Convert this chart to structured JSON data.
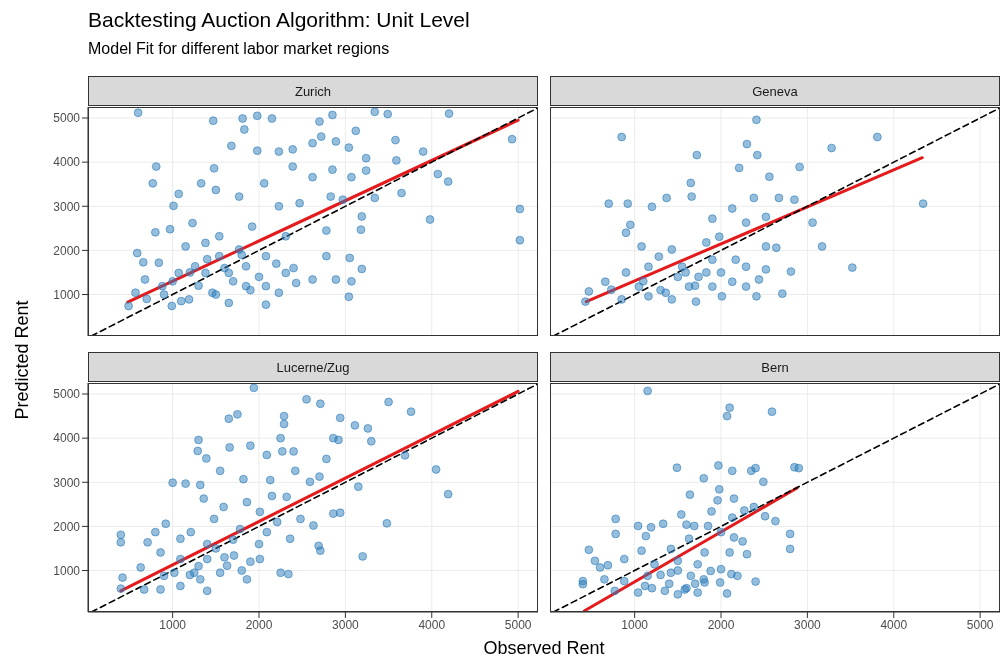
{
  "chart_data": [
    {
      "type": "scatter",
      "title": "Zurich",
      "annotations": [
        "Backtesting Auction Algorithm: Unit Level",
        "Model Fit for different labor market regions"
      ],
      "ylabel": "Predicted Rent",
      "xlim": [
        20,
        5230
      ],
      "ylim": [
        60,
        5250
      ],
      "xticks": [
        1000,
        2000,
        3000,
        4000,
        5000
      ],
      "yticks": [
        1000,
        2000,
        3000,
        4000,
        5000
      ],
      "grid": true,
      "tick_labels": "y",
      "series": [
        {
          "marker": "circle",
          "color": "#2b7bba",
          "x": [
            600,
            1470,
            1810,
            1980,
            2150,
            2850,
            3340,
            3490,
            4200,
            4930,
            5020,
            5020,
            3980,
            4190,
            3900,
            3580,
            3590,
            3120,
            2700,
            2720,
            2620,
            2890,
            3040,
            3240,
            3240,
            3650,
            4070,
            810,
            770,
            1680,
            1830,
            1980,
            2230,
            2390,
            2390,
            2850,
            3070,
            2620,
            2060,
            1330,
            1480,
            1070,
            1010,
            1500,
            1770,
            2230,
            2470,
            2830,
            2970,
            3190,
            3340,
            800,
            970,
            590,
            660,
            1230,
            1540,
            1920,
            2310,
            2780,
            3180,
            2780,
            3050,
            3190,
            3070,
            2890,
            2620,
            3040,
            2310,
            2080,
            1770,
            1380,
            1150,
            840,
            680,
            570,
            490,
            880,
            1070,
            1260,
            1540,
            1850,
            2080,
            2230,
            2080,
            1460,
            1190,
            990,
            1650,
            1850,
            2430,
            1650,
            1380,
            700,
            900,
            1100,
            1300,
            1500,
            1700,
            1900,
            1200,
            1600,
            2000,
            1000,
            1400,
            1800,
            2200,
            2400
          ],
          "values": [
            5120,
            4940,
            4990,
            5050,
            4990,
            5070,
            5140,
            5090,
            5100,
            4520,
            2940,
            2230,
            2700,
            3560,
            4240,
            4500,
            4040,
            4710,
            4920,
            4580,
            4430,
            4470,
            4330,
            4090,
            3810,
            3300,
            3730,
            3900,
            3520,
            4370,
            4740,
            4260,
            4240,
            4290,
            3900,
            3830,
            3660,
            3660,
            3520,
            3520,
            3860,
            3280,
            3010,
            3370,
            3220,
            3000,
            3070,
            3220,
            3150,
            2770,
            3190,
            2410,
            2480,
            1940,
            1730,
            2620,
            2320,
            2540,
            2320,
            2450,
            2470,
            1870,
            1830,
            1580,
            1300,
            1340,
            1340,
            950,
            1490,
            1870,
            2020,
            2170,
            2090,
            1720,
            1340,
            1040,
            740,
            1190,
            1490,
            1640,
            1870,
            1640,
            1190,
            1040,
            770,
            1040,
            890,
            740,
            810,
            1190,
            1260,
            1490,
            1490,
            900,
            1000,
            850,
            1200,
            1000,
            1300,
            1100,
            1500,
            1600,
            1400,
            1300,
            1800,
            1900,
            1700,
            1600
          ]
        },
        {
          "type": "line",
          "color": "#e41a1c",
          "x": [
            480,
            5000
          ],
          "values": [
            830,
            4950
          ]
        },
        {
          "type": "line",
          "color": "#000000",
          "line_style": "dashed",
          "x": [
            60,
            5230
          ],
          "values": [
            60,
            5230
          ]
        }
      ]
    },
    {
      "type": "scatter",
      "title": "Geneva",
      "xlim": [
        20,
        5230
      ],
      "ylim": [
        60,
        5250
      ],
      "xticks": [
        1000,
        2000,
        3000,
        4000,
        5000
      ],
      "yticks": [
        1000,
        2000,
        3000,
        4000,
        5000
      ],
      "grid": true,
      "tick_labels": false,
      "series": [
        {
          "marker": "circle",
          "color": "#2b7bba",
          "x": [
            2410,
            850,
            2300,
            2420,
            1720,
            3280,
            3810,
            4340,
            2210,
            2560,
            2910,
            1650,
            700,
            920,
            1370,
            1660,
            1200,
            900,
            950,
            2380,
            2670,
            2850,
            2130,
            1900,
            2290,
            2520,
            3060,
            3170,
            3520,
            2810,
            2710,
            2410,
            1710,
            660,
            900,
            1160,
            1430,
            1830,
            1980,
            1080,
            1280,
            1550,
            1740,
            1900,
            2170,
            2290,
            2520,
            2640,
            2130,
            2290,
            2440,
            2520,
            470,
            730,
            1050,
            1360,
            1630,
            1900,
            2010,
            1160,
            850,
            430,
            1430,
            1830,
            1590,
            1100,
            1300,
            1500,
            1700,
            2000
          ],
          "values": [
            4960,
            4570,
            4410,
            4160,
            4160,
            4320,
            4570,
            3060,
            3870,
            3670,
            3890,
            3530,
            3060,
            3060,
            3190,
            3220,
            2990,
            2400,
            2580,
            3190,
            3190,
            3150,
            2950,
            2720,
            2630,
            2760,
            2630,
            2090,
            1610,
            1520,
            1020,
            960,
            840,
            1290,
            1500,
            1630,
            2020,
            2180,
            2310,
            2090,
            1860,
            1630,
            1400,
            1790,
            1790,
            1630,
            2090,
            2060,
            1290,
            1180,
            1340,
            1570,
            1070,
            1110,
            1180,
            1040,
            1180,
            1180,
            960,
            960,
            890,
            840,
            890,
            1500,
            1500,
            1300,
            1100,
            1400,
            1200,
            1500
          ]
        },
        {
          "type": "line",
          "color": "#e41a1c",
          "x": [
            440,
            4330
          ],
          "values": [
            840,
            4100
          ]
        },
        {
          "type": "line",
          "color": "#000000",
          "line_style": "dashed",
          "x": [
            60,
            5230
          ],
          "values": [
            60,
            5230
          ]
        }
      ]
    },
    {
      "type": "scatter",
      "title": "Lucerne/Zug",
      "xlabel": "Observed Rent",
      "xlim": [
        20,
        5230
      ],
      "ylim": [
        60,
        5250
      ],
      "xticks": [
        1000,
        2000,
        3000,
        4000,
        5000
      ],
      "yticks": [
        1000,
        2000,
        3000,
        4000,
        5000
      ],
      "grid": true,
      "series": [
        {
          "marker": "circle",
          "color": "#2b7bba",
          "x": [
            1940,
            2550,
            2710,
            3500,
            3760,
            1650,
            1750,
            2290,
            2290,
            2940,
            3110,
            3260,
            1300,
            1290,
            1390,
            1660,
            1900,
            2250,
            2270,
            2400,
            2090,
            2860,
            2920,
            3300,
            2780,
            3690,
            4050,
            4190,
            3480,
            3200,
            1550,
            1000,
            1150,
            1320,
            1820,
            2130,
            2420,
            2590,
            2700,
            3150,
            2940,
            2860,
            2320,
            2150,
            1360,
            1590,
            1860,
            2010,
            2210,
            2480,
            2630,
            2690,
            2710,
            2360,
            2090,
            1780,
            1480,
            1210,
            1090,
            920,
            800,
            400,
            400,
            710,
            860,
            1090,
            1400,
            1710,
            2010,
            2250,
            2340,
            630,
            420,
            400,
            670,
            860,
            1090,
            1320,
            1550,
            1400,
            1860,
            1630,
            1250,
            1020,
            900,
            1500,
            1700,
            1300,
            1800,
            1600,
            1400,
            2000,
            1200,
            1900
          ],
          "values": [
            5140,
            4880,
            4780,
            4820,
            4600,
            4440,
            4540,
            4500,
            4320,
            4460,
            4290,
            4220,
            3960,
            3710,
            3540,
            3790,
            3830,
            4000,
            3700,
            3700,
            3620,
            4000,
            3960,
            3930,
            3530,
            3610,
            3290,
            2730,
            2070,
            1320,
            3260,
            2990,
            2970,
            2940,
            3070,
            3050,
            3260,
            3010,
            3130,
            2900,
            2310,
            2290,
            2670,
            2690,
            2630,
            2440,
            2550,
            2330,
            2100,
            2170,
            2020,
            1560,
            1450,
            1720,
            1870,
            1940,
            2170,
            1870,
            1720,
            2060,
            1870,
            1810,
            1640,
            1640,
            1410,
            1260,
            1260,
            1340,
            1260,
            950,
            920,
            1070,
            840,
            590,
            570,
            570,
            650,
            800,
            950,
            540,
            800,
            1110,
            950,
            950,
            880,
            1500,
            1700,
            1100,
            1000,
            1300,
            1600,
            1600,
            900,
            1200
          ]
        },
        {
          "type": "line",
          "color": "#e41a1c",
          "x": [
            400,
            5000
          ],
          "values": [
            540,
            5060
          ]
        },
        {
          "type": "line",
          "color": "#000000",
          "line_style": "dashed",
          "x": [
            60,
            5230
          ],
          "values": [
            60,
            5230
          ]
        }
      ]
    },
    {
      "type": "scatter",
      "title": "Bern",
      "xlim": [
        20,
        5230
      ],
      "ylim": [
        60,
        5250
      ],
      "xticks": [
        1000,
        2000,
        3000,
        4000,
        5000
      ],
      "yticks": [
        1000,
        2000,
        3000,
        4000,
        5000
      ],
      "grid": true,
      "tick_labels": "x",
      "series": [
        {
          "marker": "circle",
          "color": "#2b7bba",
          "x": [
            1150,
            2100,
            2070,
            2590,
            1490,
            1970,
            2130,
            2350,
            2400,
            2850,
            2900,
            1800,
            2490,
            1980,
            1640,
            2150,
            1960,
            1890,
            2270,
            2380,
            1540,
            2130,
            2510,
            2630,
            780,
            1040,
            1190,
            1330,
            1600,
            1690,
            1850,
            2000,
            2800,
            780,
            1130,
            2150,
            1630,
            2250,
            2800,
            2100,
            2300,
            470,
            1080,
            1420,
            1810,
            540,
            600,
            690,
            880,
            1230,
            1500,
            1730,
            1880,
            2000,
            2120,
            2190,
            2400,
            1990,
            2070,
            400,
            400,
            650,
            880,
            1120,
            1350,
            1580,
            1810,
            1150,
            1420,
            1650,
            770,
            1040,
            1500,
            1730,
            1200,
            1400,
            1600,
            1800,
            1300,
            1500,
            1700
          ],
          "values": [
            5070,
            4690,
            4500,
            4600,
            3330,
            3380,
            3260,
            3260,
            3320,
            3340,
            3320,
            3090,
            3010,
            2840,
            2720,
            2630,
            2590,
            2340,
            2360,
            2440,
            2270,
            2200,
            2230,
            2120,
            2170,
            2010,
            1980,
            2060,
            2040,
            2010,
            2010,
            1870,
            1830,
            1830,
            1780,
            1750,
            1720,
            1660,
            1490,
            1410,
            1370,
            1470,
            1450,
            1490,
            1410,
            1220,
            1070,
            1120,
            1260,
            1140,
            1220,
            1140,
            990,
            1030,
            920,
            880,
            750,
            730,
            480,
            760,
            690,
            800,
            760,
            650,
            540,
            570,
            730,
            880,
            950,
            880,
            540,
            500,
            460,
            500,
            600,
            700,
            600,
            800,
            900,
            1000,
            700
          ]
        },
        {
          "type": "line",
          "color": "#e41a1c",
          "x": [
            420,
            2880
          ],
          "values": [
            90,
            2870
          ]
        },
        {
          "type": "line",
          "color": "#000000",
          "line_style": "dashed",
          "x": [
            60,
            5230
          ],
          "values": [
            60,
            5230
          ]
        }
      ]
    }
  ]
}
